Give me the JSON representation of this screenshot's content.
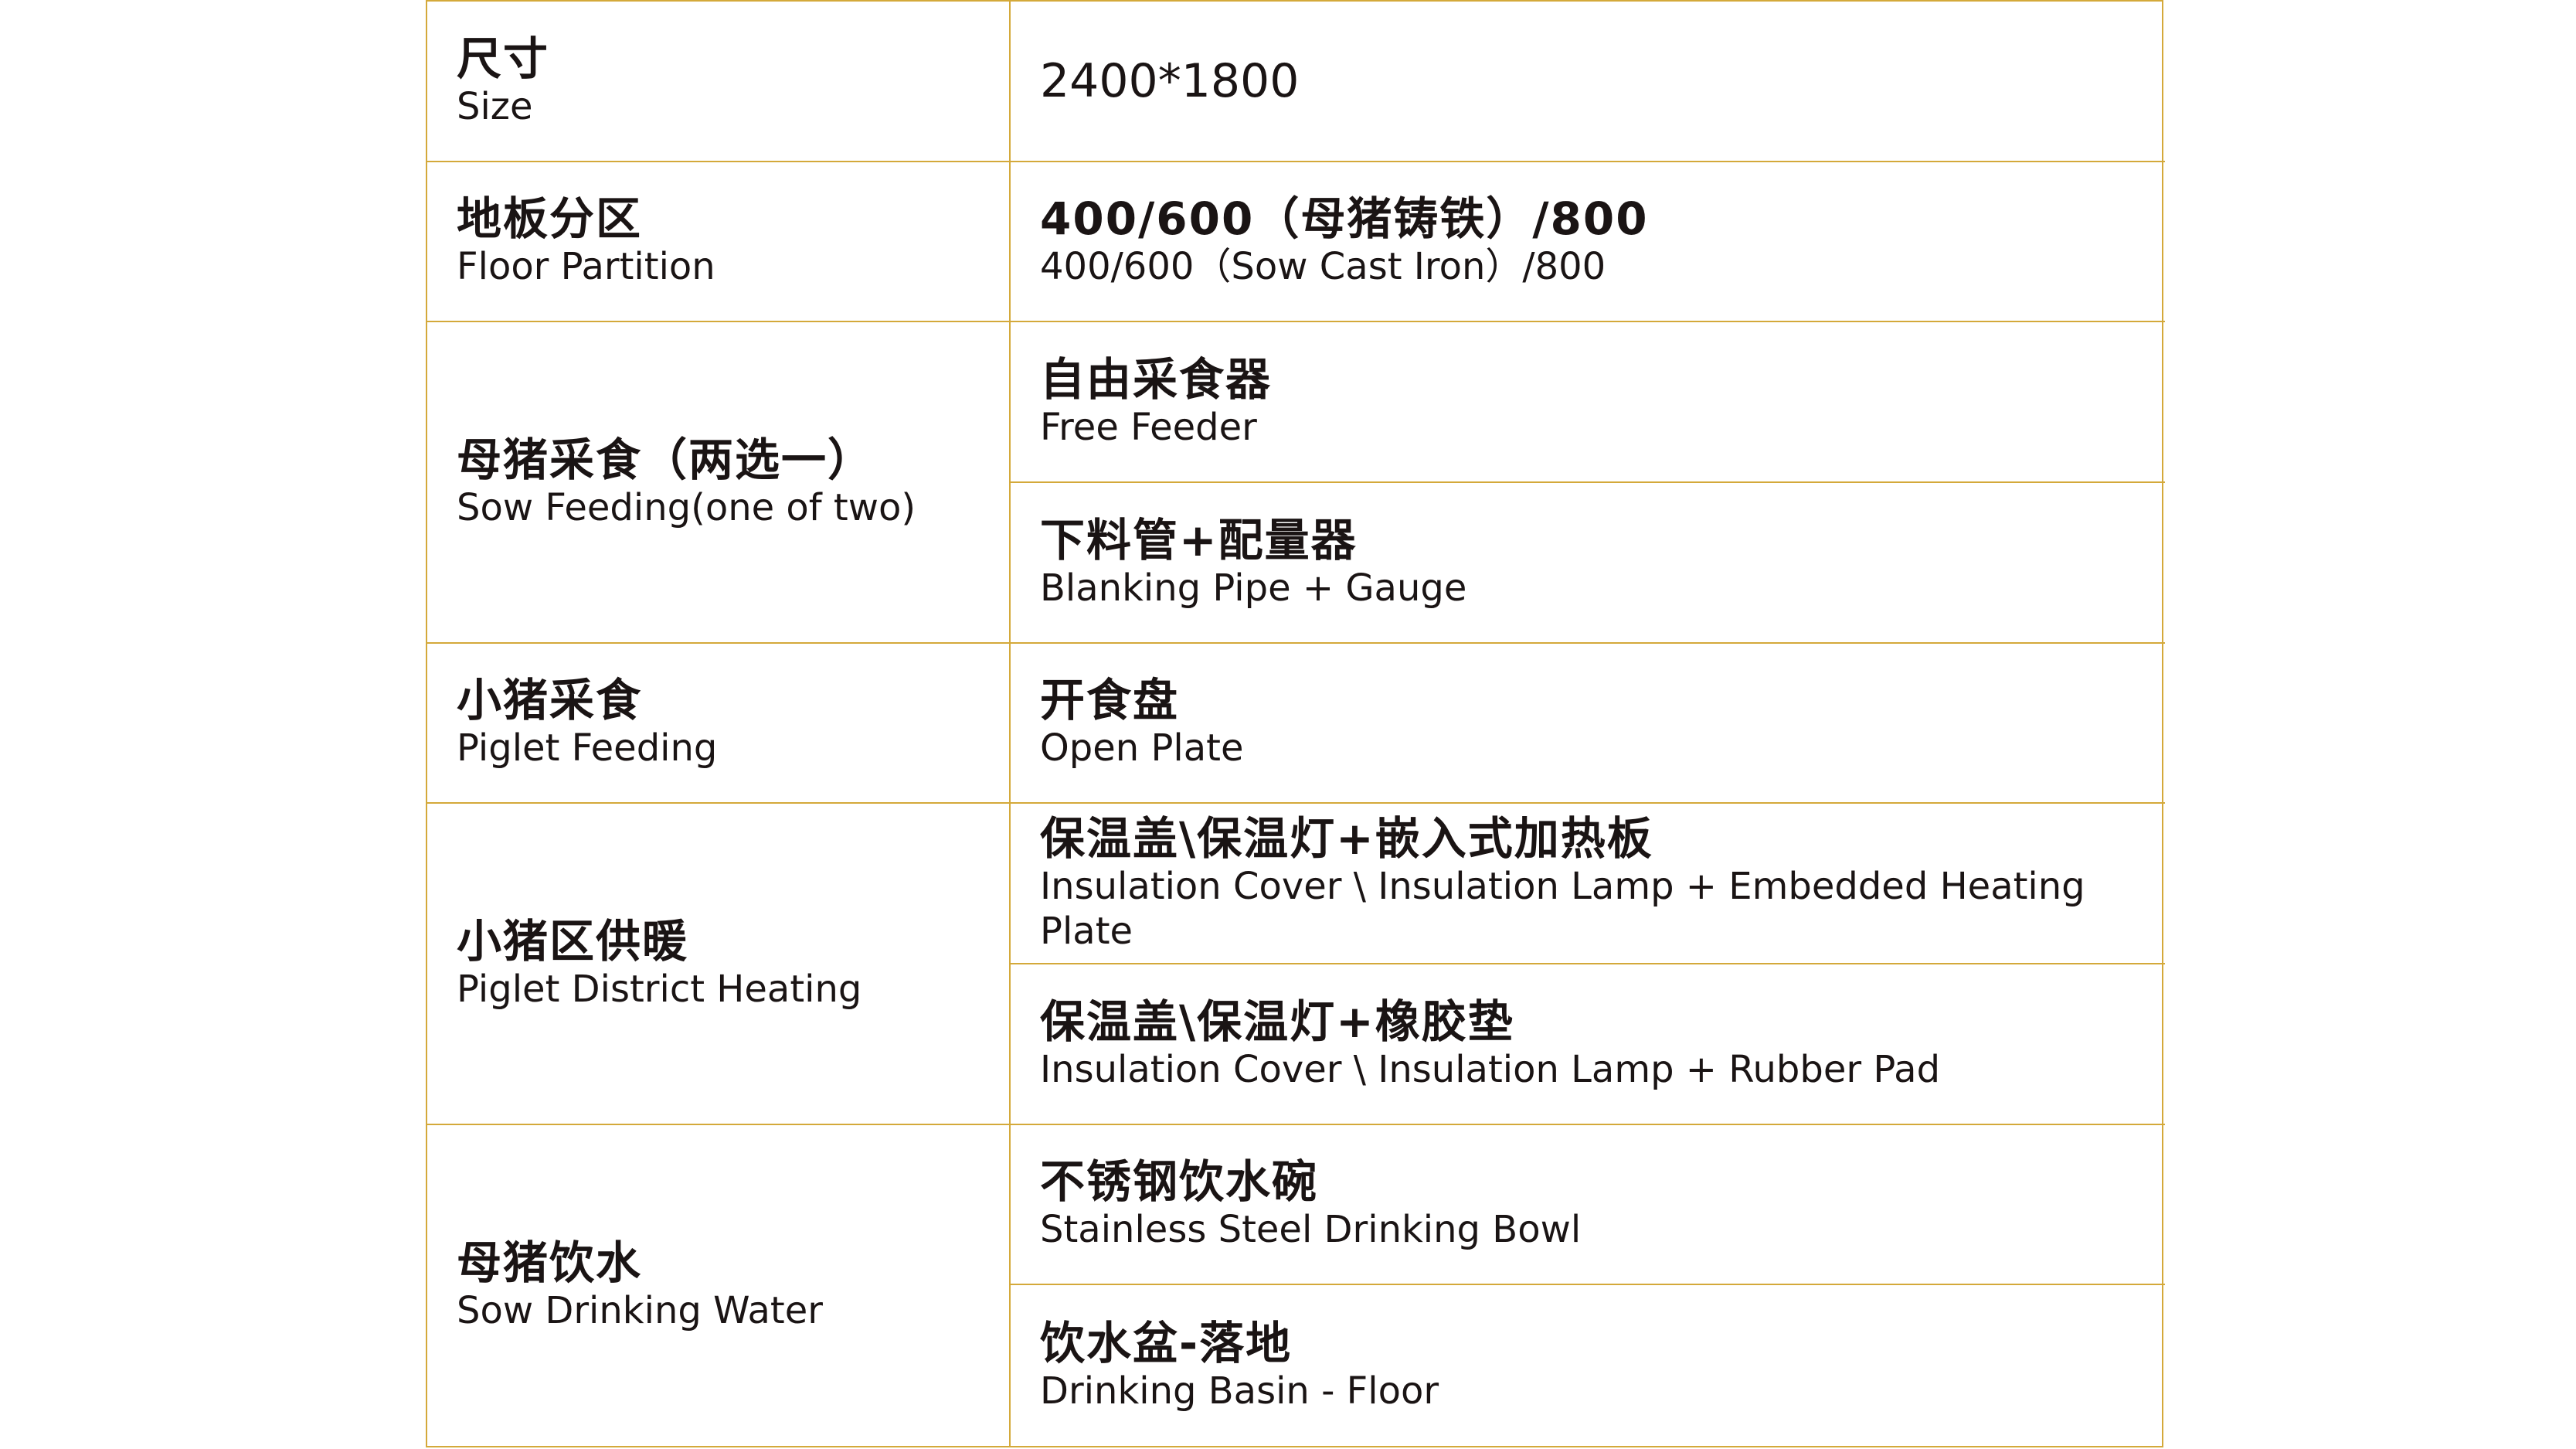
{
  "colors": {
    "border": "#d4a93a",
    "text": "#1a1414"
  },
  "rows": [
    {
      "label_zh": "尺寸",
      "label_en": "Size",
      "values": [
        {
          "zh": "2400*1800",
          "en": ""
        }
      ]
    },
    {
      "label_zh": "地板分区",
      "label_en": "Floor Partition",
      "values": [
        {
          "zh": "400/600（母猪铸铁）/800",
          "en": "400/600（Sow Cast Iron）/800"
        }
      ]
    },
    {
      "label_zh": "母猪采食（两选一）",
      "label_en": "Sow Feeding(one of two)",
      "values": [
        {
          "zh": "自由采食器",
          "en": "Free Feeder"
        },
        {
          "zh": "下料管+配量器",
          "en": "Blanking Pipe + Gauge"
        }
      ]
    },
    {
      "label_zh": "小猪采食",
      "label_en": "Piglet Feeding",
      "values": [
        {
          "zh": "开食盘",
          "en": "Open Plate"
        }
      ]
    },
    {
      "label_zh": "小猪区供暖",
      "label_en": "Piglet District Heating",
      "values": [
        {
          "zh": "保温盖\\保温灯+嵌入式加热板",
          "en": "Insulation Cover \\ Insulation Lamp + Embedded Heating Plate"
        },
        {
          "zh": "保温盖\\保温灯+橡胶垫",
          "en": "Insulation Cover \\ Insulation Lamp + Rubber Pad"
        }
      ]
    },
    {
      "label_zh": "母猪饮水",
      "label_en": "Sow Drinking Water",
      "values": [
        {
          "zh": "不锈钢饮水碗",
          "en": "Stainless Steel Drinking Bowl"
        },
        {
          "zh": "饮水盆-落地",
          "en": "Drinking Basin - Floor"
        }
      ]
    }
  ]
}
